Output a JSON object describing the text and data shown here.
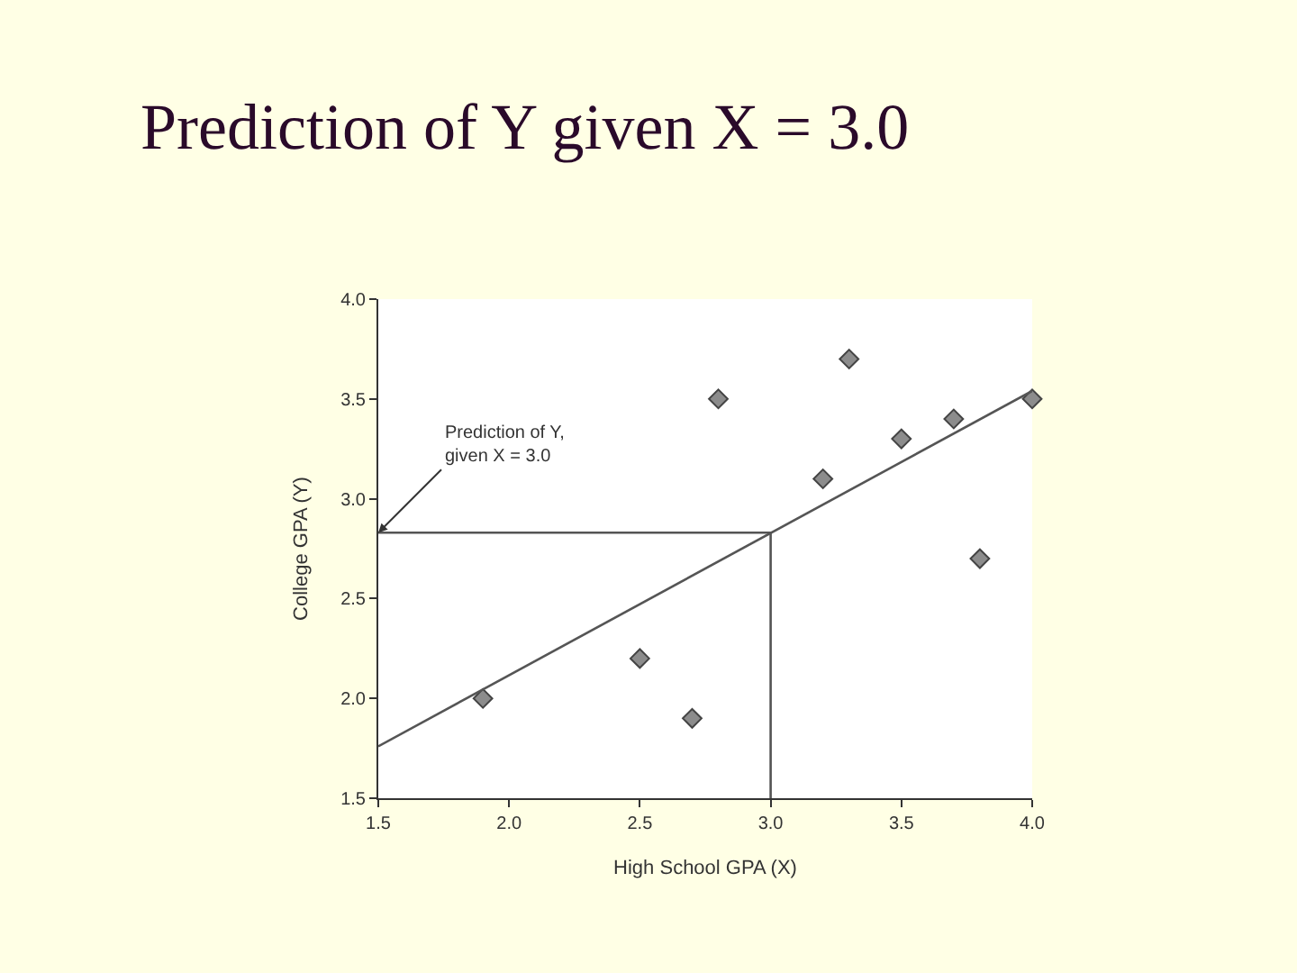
{
  "chart_data": {
    "type": "scatter",
    "title": "Prediction of Y given X = 3.0",
    "xlabel": "High School GPA (X)",
    "ylabel": "College GPA (Y)",
    "xlim": [
      1.5,
      4.0
    ],
    "ylim": [
      1.5,
      4.0
    ],
    "xticks": [
      {
        "value": 1.5,
        "label": "1.5"
      },
      {
        "value": 2,
        "label": "2.0"
      },
      {
        "value": 2.5,
        "label": "2.5"
      },
      {
        "value": 3,
        "label": "3.0"
      },
      {
        "value": 3.5,
        "label": "3.5"
      },
      {
        "value": 4,
        "label": "4.0"
      }
    ],
    "yticks": [
      {
        "value": 1.5,
        "label": "1.5"
      },
      {
        "value": 2,
        "label": "2.0"
      },
      {
        "value": 2.5,
        "label": "2.5"
      },
      {
        "value": 3,
        "label": "3.0"
      },
      {
        "value": 3.5,
        "label": "3.5"
      },
      {
        "value": 4,
        "label": "4.0"
      }
    ],
    "marker": "diamond",
    "series": [
      {
        "color": "#8c8c8c",
        "x": [
          1.9,
          2.5,
          2.7,
          2.8,
          3.2,
          3.3,
          3.5,
          3.7,
          3.8,
          4.0
        ],
        "values": [
          2.0,
          2.2,
          1.9,
          3.5,
          3.1,
          3.7,
          3.3,
          3.4,
          2.7,
          3.5
        ]
      },
      {
        "type": "line",
        "marker": "none",
        "color": "#555555",
        "x": [
          1.5,
          4.0
        ],
        "values": [
          1.76,
          3.54
        ]
      },
      {
        "type": "line",
        "marker": "none",
        "color": "#555555",
        "x": [
          1.5,
          3.0,
          3.0
        ],
        "values": [
          2.83,
          2.83,
          1.5
        ]
      }
    ],
    "annotations": [
      {
        "text": "Prediction of Y,\ngiven X = 3.0",
        "x": 1.5,
        "y": 2.83
      }
    ]
  }
}
